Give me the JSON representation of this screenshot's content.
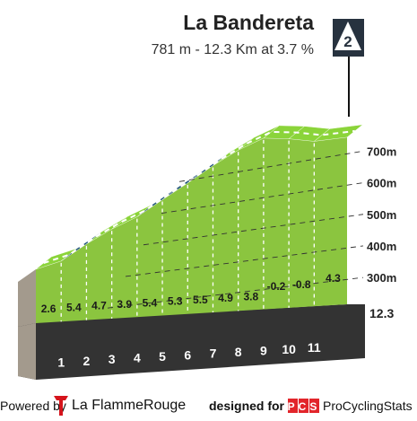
{
  "climb": {
    "name": "La Bandereta",
    "summary": "781 m - 12.3 Km at 3.7 %",
    "category_badge": "2"
  },
  "chart_data": {
    "type": "area",
    "title": "La Bandereta",
    "subtitle": "781 m - 12.3 Km at 3.7 %",
    "km_markers": [
      "1",
      "2",
      "3",
      "4",
      "5",
      "6",
      "7",
      "8",
      "9",
      "10",
      "11"
    ],
    "segment_gradients": [
      2.6,
      5.4,
      4.7,
      3.9,
      5.4,
      5.3,
      5.5,
      4.9,
      3.8,
      -0.2,
      -0.8,
      4.3
    ],
    "segment_gradient_labels": [
      "2.6",
      "5.4",
      "4.7",
      "3.9",
      "5.4",
      "5.3",
      "5.5",
      "4.9",
      "3.8",
      "-0.2",
      "-0.8",
      "4.3"
    ],
    "total_distance_label": "12.3",
    "altitude_ticks": [
      {
        "value": 300,
        "label": "300m"
      },
      {
        "value": 400,
        "label": "400m"
      },
      {
        "value": 500,
        "label": "500m"
      },
      {
        "value": 600,
        "label": "600m"
      },
      {
        "value": 700,
        "label": "700m"
      }
    ],
    "start_altitude": 326,
    "summit_altitude": 781,
    "colors": {
      "side": "#8bc53f",
      "top_light": "#8bd43a",
      "top_dark": "#25597a",
      "base": "#333333",
      "start_face": "#a39a8d",
      "km_text": "#ffffff",
      "badge": "#27323f"
    }
  },
  "footer": {
    "powered_by": "Powered by",
    "brand": "La FlammeRouge",
    "designed_for": "designed for",
    "pcs_logo": "PCS",
    "pcs_name": "ProCyclingStats",
    "brand_icon": "flame-rouge-icon"
  }
}
